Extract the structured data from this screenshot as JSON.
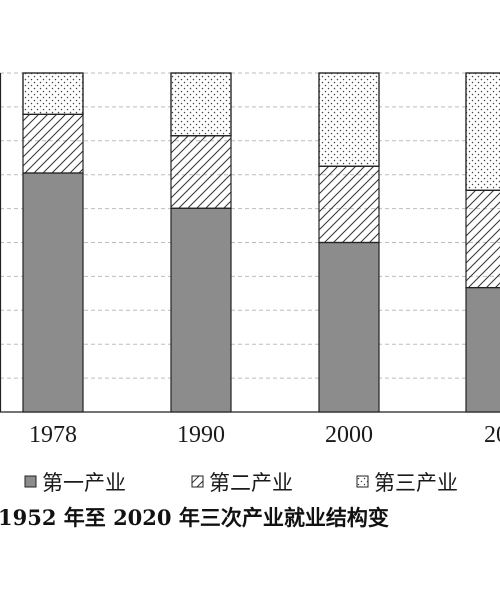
{
  "chart_data": {
    "type": "bar",
    "stacked": true,
    "categories": [
      "1978",
      "1990",
      "2000",
      "20"
    ],
    "series": [
      {
        "name": "第一产业",
        "values": [
          70.5,
          60.1,
          50.0,
          36.7
        ],
        "pattern": "solid-gray"
      },
      {
        "name": "第二产业",
        "values": [
          17.3,
          21.4,
          22.5,
          28.7
        ],
        "pattern": "diagonal-hatch"
      },
      {
        "name": "第三产业",
        "values": [
          12.2,
          18.5,
          27.5,
          34.6
        ],
        "pattern": "dotted"
      }
    ],
    "ylim": [
      0,
      100
    ],
    "grid": true,
    "legend_position": "bottom",
    "colors": {
      "primary_fill": "#8c8c8c",
      "outline": "#222222",
      "grid": "#bdbdbd"
    }
  },
  "caption": "1952 年至 2020 年三次产业就业结构变"
}
